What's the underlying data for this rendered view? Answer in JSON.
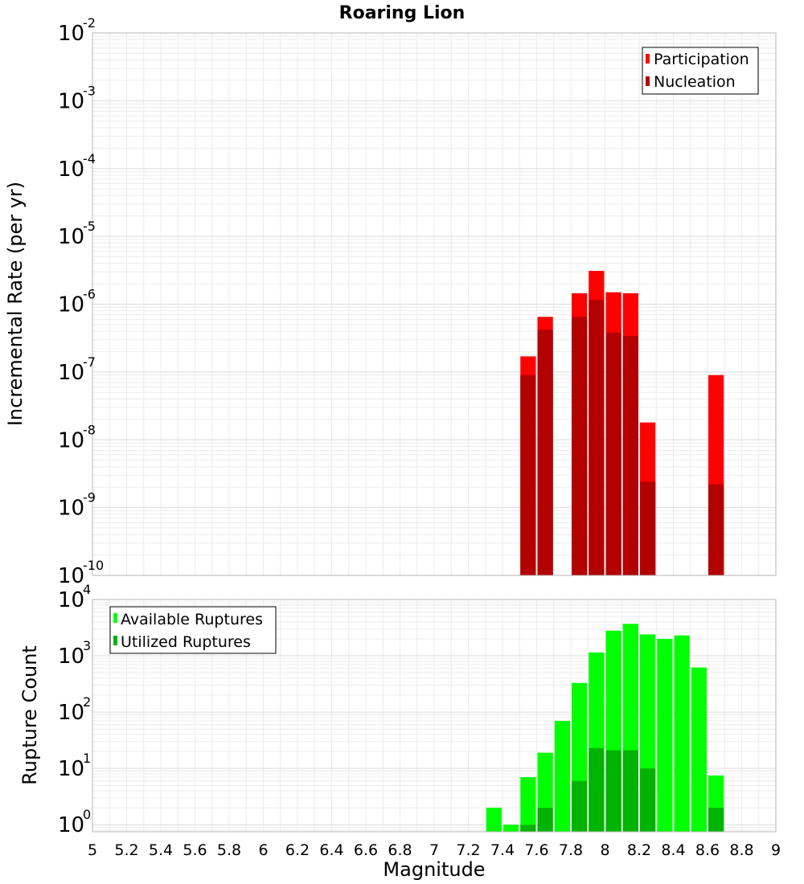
{
  "chart_data": [
    {
      "type": "bar",
      "title": "Roaring Lion",
      "xlabel": "",
      "ylabel": "Incremental Rate (per yr)",
      "yscale": "log",
      "ylim": [
        1e-10,
        0.01
      ],
      "xlim": [
        5,
        9
      ],
      "bar_width": 0.1,
      "yticks": [
        {
          "base": "10",
          "exp": "-10",
          "value": 1e-10
        },
        {
          "base": "10",
          "exp": "-9",
          "value": 1e-09
        },
        {
          "base": "10",
          "exp": "-8",
          "value": 1e-08
        },
        {
          "base": "10",
          "exp": "-7",
          "value": 1e-07
        },
        {
          "base": "10",
          "exp": "-6",
          "value": 1e-06
        },
        {
          "base": "10",
          "exp": "-5",
          "value": 1e-05
        },
        {
          "base": "10",
          "exp": "-4",
          "value": 0.0001
        },
        {
          "base": "10",
          "exp": "-3",
          "value": 0.001
        },
        {
          "base": "10",
          "exp": "-2",
          "value": 0.01
        }
      ],
      "legend_position": "top-right",
      "series": [
        {
          "name": "Participation",
          "color": "#ff0000",
          "x": [
            7.55,
            7.65,
            7.85,
            7.95,
            8.05,
            8.15,
            8.25,
            8.65
          ],
          "values": [
            1.7e-07,
            6.5e-07,
            1.45e-06,
            3.1e-06,
            1.5e-06,
            1.45e-06,
            1.8e-08,
            9e-08
          ]
        },
        {
          "name": "Nucleation",
          "color": "#b30000",
          "x": [
            7.55,
            7.65,
            7.85,
            7.95,
            8.05,
            8.15,
            8.25,
            8.65
          ],
          "values": [
            9e-08,
            4.2e-07,
            6.5e-07,
            1.15e-06,
            3.8e-07,
            3.4e-07,
            2.4e-09,
            2.2e-09
          ]
        }
      ]
    },
    {
      "type": "bar",
      "title": "",
      "xlabel": "Magnitude",
      "ylabel": "Rupture Count",
      "yscale": "log",
      "ylim": [
        0.75,
        10000
      ],
      "xlim": [
        5,
        9
      ],
      "bar_width": 0.1,
      "yticks": [
        {
          "base": "10",
          "exp": "0",
          "value": 1
        },
        {
          "base": "10",
          "exp": "1",
          "value": 10
        },
        {
          "base": "10",
          "exp": "2",
          "value": 100
        },
        {
          "base": "10",
          "exp": "3",
          "value": 1000
        },
        {
          "base": "10",
          "exp": "4",
          "value": 10000
        }
      ],
      "xticks": [
        "5",
        "5.2",
        "5.4",
        "5.6",
        "5.8",
        "6",
        "6.2",
        "6.4",
        "6.6",
        "6.8",
        "7",
        "7.2",
        "7.4",
        "7.6",
        "7.8",
        "8",
        "8.2",
        "8.4",
        "8.6",
        "8.8",
        "9"
      ],
      "legend_position": "top-left",
      "series": [
        {
          "name": "Available Ruptures",
          "color": "#00ff00",
          "x": [
            7.35,
            7.45,
            7.55,
            7.65,
            7.75,
            7.85,
            7.95,
            8.05,
            8.15,
            8.25,
            8.35,
            8.45,
            8.55,
            8.65
          ],
          "values": [
            2,
            1,
            7,
            19,
            70,
            330,
            1150,
            2800,
            3700,
            2400,
            2000,
            2300,
            620,
            7.5
          ]
        },
        {
          "name": "Utilized Ruptures",
          "color": "#00b300",
          "x": [
            7.55,
            7.65,
            7.85,
            7.95,
            8.05,
            8.15,
            8.25,
            8.65
          ],
          "values": [
            1,
            2,
            6,
            23,
            21,
            21,
            10,
            2
          ]
        }
      ]
    }
  ]
}
